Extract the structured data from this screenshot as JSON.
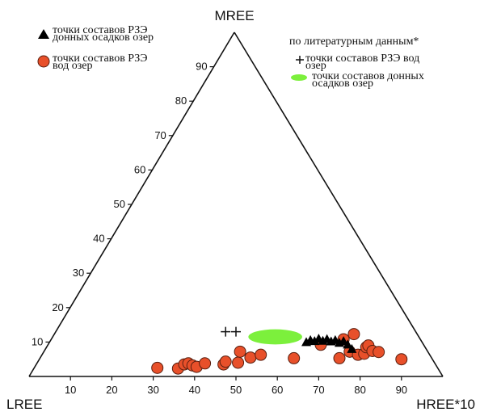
{
  "chart_data": {
    "type": "scatter",
    "subtype": "ternary",
    "vertices": {
      "top": "MREE",
      "left": "LREE",
      "right": "HREE*10"
    },
    "ticks": {
      "bottom": [
        "10",
        "20",
        "30",
        "40",
        "50",
        "60",
        "70",
        "80",
        "90"
      ],
      "left": [
        "10",
        "20",
        "30",
        "40",
        "50",
        "60",
        "70",
        "80",
        "90"
      ]
    },
    "grid": false,
    "legend": {
      "placement": "top-left and top-right",
      "sediment": [
        "точки составов РЗЭ",
        "донных осадков озер"
      ],
      "water": [
        "точки составов РЗЭ",
        "вод озер"
      ],
      "literature_header": "по литературным данным*",
      "lit_water": [
        "точки составов РЗЭ вод",
        "озер"
      ],
      "lit_sediment": [
        "точки составов донных",
        "осадков озер"
      ]
    },
    "colors": {
      "water_fill": "#e8502a",
      "water_stroke": "#5a1f10",
      "sediment": "#000000",
      "lit_sediment_fill": "#7cf03c",
      "lit_water": "#111111",
      "axis": "#111111"
    },
    "series": [
      {
        "name": "вод озер",
        "marker": "circle",
        "points": [
          {
            "x": 31,
            "y": 2.5
          },
          {
            "x": 36,
            "y": 2.3
          },
          {
            "x": 37.5,
            "y": 3.5
          },
          {
            "x": 38.5,
            "y": 3.8
          },
          {
            "x": 39.5,
            "y": 3.2
          },
          {
            "x": 40.5,
            "y": 2.8
          },
          {
            "x": 42.5,
            "y": 3.8
          },
          {
            "x": 47,
            "y": 3.5
          },
          {
            "x": 47.5,
            "y": 4.3
          },
          {
            "x": 50.5,
            "y": 4.0
          },
          {
            "x": 51,
            "y": 7.2
          },
          {
            "x": 53.5,
            "y": 5.5
          },
          {
            "x": 56,
            "y": 6.3
          },
          {
            "x": 64,
            "y": 5.3
          },
          {
            "x": 70.5,
            "y": 9.2
          },
          {
            "x": 75,
            "y": 5.3
          },
          {
            "x": 76,
            "y": 10.8
          },
          {
            "x": 77.5,
            "y": 7.2
          },
          {
            "x": 78.5,
            "y": 12.3
          },
          {
            "x": 79.5,
            "y": 6.3
          },
          {
            "x": 81,
            "y": 6.6
          },
          {
            "x": 81.5,
            "y": 8.5
          },
          {
            "x": 82,
            "y": 9.0
          },
          {
            "x": 83,
            "y": 7.4
          },
          {
            "x": 84.5,
            "y": 7.1
          },
          {
            "x": 90,
            "y": 5.0
          }
        ]
      },
      {
        "name": "донных осадков озер",
        "marker": "triangle",
        "points": [
          {
            "x": 67,
            "y": 10.0
          },
          {
            "x": 68,
            "y": 10.6
          },
          {
            "x": 69,
            "y": 10.3
          },
          {
            "x": 70,
            "y": 11.0
          },
          {
            "x": 71,
            "y": 10.4
          },
          {
            "x": 72,
            "y": 10.9
          },
          {
            "x": 73,
            "y": 10.2
          },
          {
            "x": 74,
            "y": 10.6
          },
          {
            "x": 75,
            "y": 9.8
          },
          {
            "x": 76,
            "y": 10.3
          },
          {
            "x": 77,
            "y": 9.3
          },
          {
            "x": 78,
            "y": 8.0
          }
        ]
      },
      {
        "name": "точки составов РЗЭ вод озер (по литературным данным)",
        "marker": "plus",
        "points": [
          {
            "x": 47.5,
            "y": 13.0
          },
          {
            "x": 50.0,
            "y": 13.0
          }
        ]
      },
      {
        "name": "точки составов донных осадков озер (по литературным данным)",
        "marker": "ellipse",
        "center": {
          "x": 59.5,
          "y": 11.5
        },
        "rx_units": 6.5,
        "ry_units": 2.2
      }
    ]
  }
}
